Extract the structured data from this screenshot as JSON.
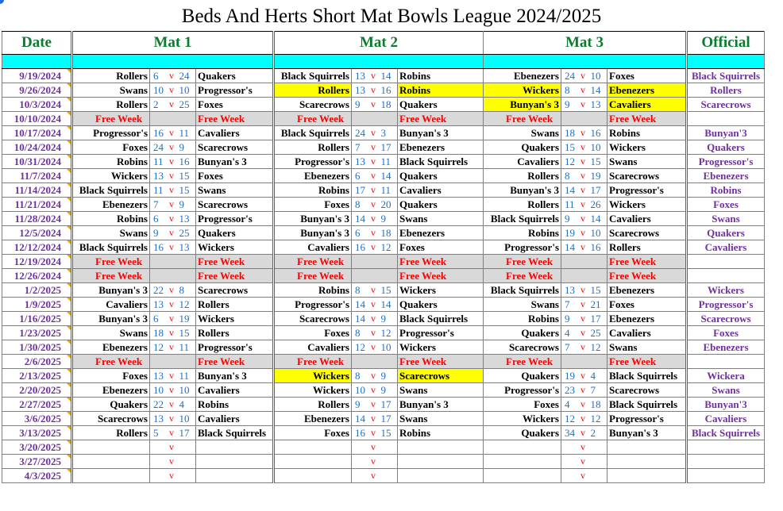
{
  "title": "Beds And Herts Short Mat Bowls League 2024/2025",
  "headers": {
    "date": "Date",
    "mat1": "Mat 1",
    "mat2": "Mat 2",
    "mat3": "Mat 3",
    "official": "Official"
  },
  "free_week_label": "Free Week",
  "vs_label": "v",
  "colors": {
    "accent_green": "#0e7a2f",
    "date_purple": "#7030a0",
    "score_blue": "#2070c0",
    "vs_red": "#ff0000",
    "header_cyan": "#00ffff",
    "highlight_yellow": "#ffff00",
    "free_grey": "#d9d9d9"
  },
  "rows": [
    {
      "date": "9/19/2024",
      "official": "Black Squirrels",
      "mats": [
        {
          "home": "Rollers",
          "hs": "6",
          "as": "24",
          "away": "Quakers"
        },
        {
          "home": "Black Squirrels",
          "hs": "13",
          "as": "14",
          "away": "Robins"
        },
        {
          "home": "Ebenezers",
          "hs": "24",
          "as": "10",
          "away": "Foxes"
        }
      ]
    },
    {
      "date": "9/26/2024",
      "official": "Rollers",
      "mats": [
        {
          "home": "Swans",
          "hs": "10",
          "as": "10",
          "away": "Progressor's"
        },
        {
          "home": "Rollers",
          "hs": "13",
          "as": "16",
          "away": "Robins",
          "hl": true
        },
        {
          "home": "Wickers",
          "hs": "8",
          "as": "14",
          "away": "Ebenezers",
          "hl": true
        }
      ]
    },
    {
      "date": "10/3/2024",
      "official": "Scarecrows",
      "mats": [
        {
          "home": "Rollers",
          "hs": "2",
          "as": "25",
          "away": "Foxes"
        },
        {
          "home": "Scarecrows",
          "hs": "9",
          "as": "18",
          "away": "Quakers"
        },
        {
          "home": "Bunyan's 3",
          "hs": "9",
          "as": "13",
          "away": "Cavaliers",
          "hl": true
        }
      ]
    },
    {
      "date": "10/10/2024",
      "official": "",
      "free": true
    },
    {
      "date": "10/17/2024",
      "official": "Bunyan'3",
      "mats": [
        {
          "home": "Progressor's",
          "hs": "16",
          "as": "11",
          "away": "Cavaliers"
        },
        {
          "home": "Black Squirrels",
          "hs": "24",
          "as": "3",
          "away": "Bunyan's 3"
        },
        {
          "home": "Swans",
          "hs": "18",
          "as": "16",
          "away": "Robins"
        }
      ]
    },
    {
      "date": "10/24/2024",
      "official": "Quakers",
      "mats": [
        {
          "home": "Foxes",
          "hs": "24",
          "as": "9",
          "away": "Scarecrows"
        },
        {
          "home": "Rollers",
          "hs": "7",
          "as": "17",
          "away": "Ebenezers"
        },
        {
          "home": "Quakers",
          "hs": "15",
          "as": "10",
          "away": "Wickers"
        }
      ]
    },
    {
      "date": "10/31/2024",
      "official": "Progressor's",
      "mats": [
        {
          "home": "Robins",
          "hs": "11",
          "as": "16",
          "away": "Bunyan's 3"
        },
        {
          "home": "Progressor's",
          "hs": "13",
          "as": "11",
          "away": "Black Squirrels"
        },
        {
          "home": "Cavaliers",
          "hs": "12",
          "as": "15",
          "away": "Swans"
        }
      ]
    },
    {
      "date": "11/7/2024",
      "official": "Ebenezers",
      "mats": [
        {
          "home": "Wickers",
          "hs": "13",
          "as": "15",
          "away": "Foxes"
        },
        {
          "home": "Ebenezers",
          "hs": "6",
          "as": "14",
          "away": "Quakers"
        },
        {
          "home": "Rollers",
          "hs": "8",
          "as": "19",
          "away": "Scarecrows"
        }
      ]
    },
    {
      "date": "11/14/2024",
      "official": "Robins",
      "mats": [
        {
          "home": "Black Squirrels",
          "hs": "11",
          "as": "15",
          "away": "Swans"
        },
        {
          "home": "Robins",
          "hs": "17",
          "as": "11",
          "away": "Cavaliers"
        },
        {
          "home": "Bunyan's 3",
          "hs": "14",
          "as": "17",
          "away": "Progressor's"
        }
      ]
    },
    {
      "date": "11/21/2024",
      "official": "Foxes",
      "mats": [
        {
          "home": "Ebenezers",
          "hs": "7",
          "as": "9",
          "away": "Scarecrows"
        },
        {
          "home": "Foxes",
          "hs": "8",
          "as": "20",
          "away": "Quakers"
        },
        {
          "home": "Rollers",
          "hs": "11",
          "as": "26",
          "away": "Wickers"
        }
      ]
    },
    {
      "date": "11/28/2024",
      "official": "Swans",
      "mats": [
        {
          "home": "Robins",
          "hs": "6",
          "as": "13",
          "away": "Progressor's"
        },
        {
          "home": "Bunyan's 3",
          "hs": "14",
          "as": "9",
          "away": "Swans"
        },
        {
          "home": "Black Squirrels",
          "hs": "9",
          "as": "14",
          "away": "Cavaliers"
        }
      ]
    },
    {
      "date": "12/5/2024",
      "official": "Quakers",
      "mats": [
        {
          "home": "Swans",
          "hs": "9",
          "as": "25",
          "away": "Quakers"
        },
        {
          "home": "Bunyan's 3",
          "hs": "6",
          "as": "18",
          "away": "Ebenezers"
        },
        {
          "home": "Robins",
          "hs": "19",
          "as": "10",
          "away": "Scarecrows"
        }
      ]
    },
    {
      "date": "12/12/2024",
      "official": "Cavaliers",
      "mats": [
        {
          "home": "Black Squirrels",
          "hs": "16",
          "as": "13",
          "away": "Wickers"
        },
        {
          "home": "Cavaliers",
          "hs": "16",
          "as": "12",
          "away": "Foxes"
        },
        {
          "home": "Progressor's",
          "hs": "14",
          "as": "16",
          "away": "Rollers"
        }
      ]
    },
    {
      "date": "12/19/2024",
      "official": "",
      "free": true
    },
    {
      "date": "12/26/2024",
      "official": "",
      "free": true
    },
    {
      "date": "1/2/2025",
      "official": "Wickers",
      "mats": [
        {
          "home": "Bunyan's 3",
          "hs": "22",
          "as": "8",
          "away": "Scarecrows"
        },
        {
          "home": "Robins",
          "hs": "8",
          "as": "15",
          "away": "Wickers"
        },
        {
          "home": "Black Squirrels",
          "hs": "13",
          "as": "15",
          "away": "Ebenezers"
        }
      ]
    },
    {
      "date": "1/9/2025",
      "official": "Progressor's",
      "mats": [
        {
          "home": "Cavaliers",
          "hs": "13",
          "as": "12",
          "away": "Rollers"
        },
        {
          "home": "Progressor's",
          "hs": "14",
          "as": "14",
          "away": "Quakers"
        },
        {
          "home": "Swans",
          "hs": "7",
          "as": "21",
          "away": "Foxes"
        }
      ]
    },
    {
      "date": "1/16/2025",
      "official": "Scarecrows",
      "mats": [
        {
          "home": "Bunyan's 3",
          "hs": "6",
          "as": "19",
          "away": "Wickers"
        },
        {
          "home": "Scarecrows",
          "hs": "14",
          "as": "9",
          "away": "Black Squirrels"
        },
        {
          "home": "Robins",
          "hs": "9",
          "as": "17",
          "away": "Ebenezers"
        }
      ]
    },
    {
      "date": "1/23/2025",
      "official": "Foxes",
      "mats": [
        {
          "home": "Swans",
          "hs": "18",
          "as": "15",
          "away": "Rollers"
        },
        {
          "home": "Foxes",
          "hs": "8",
          "as": "12",
          "away": "Progressor's"
        },
        {
          "home": "Quakers",
          "hs": "4",
          "as": "25",
          "away": "Cavaliers"
        }
      ]
    },
    {
      "date": "1/30/2025",
      "official": "Ebenezers",
      "mats": [
        {
          "home": "Ebenezers",
          "hs": "12",
          "as": "11",
          "away": "Progressor's"
        },
        {
          "home": "Cavaliers",
          "hs": "12",
          "as": "10",
          "away": "Wickers"
        },
        {
          "home": "Scarecrows",
          "hs": "7",
          "as": "12",
          "away": "Swans"
        }
      ]
    },
    {
      "date": "2/6/2025",
      "official": "",
      "free": true
    },
    {
      "date": "2/13/2025",
      "official": "Wickera",
      "mats": [
        {
          "home": "Foxes",
          "hs": "13",
          "as": "11",
          "away": "Bunyan's 3"
        },
        {
          "home": "Wickers",
          "hs": "8",
          "as": "9",
          "away": "Scarecrows",
          "hl": true
        },
        {
          "home": "Quakers",
          "hs": "19",
          "as": "4",
          "away": "Black Squirrels"
        }
      ]
    },
    {
      "date": "2/20/2025",
      "official": "Swans",
      "mats": [
        {
          "home": "Ebenezers",
          "hs": "10",
          "as": "10",
          "away": "Cavaliers"
        },
        {
          "home": "Wickers",
          "hs": "10",
          "as": "9",
          "away": "Swans"
        },
        {
          "home": "Progressor's",
          "hs": "23",
          "as": "7",
          "away": "Scarecrows"
        }
      ]
    },
    {
      "date": "2/27/2025",
      "official": "Bunyan'3",
      "mats": [
        {
          "home": "Quakers",
          "hs": "22",
          "as": "4",
          "away": "Robins"
        },
        {
          "home": "Rollers",
          "hs": "9",
          "as": "17",
          "away": "Bunyan's 3"
        },
        {
          "home": "Foxes",
          "hs": "4",
          "as": "18",
          "away": "Black Squirrels"
        }
      ]
    },
    {
      "date": "3/6/2025",
      "official": "Cavaliers",
      "mats": [
        {
          "home": "Scarecrows",
          "hs": "13",
          "as": "10",
          "away": "Cavaliers"
        },
        {
          "home": "Ebenezers",
          "hs": "14",
          "as": "17",
          "away": "Swans"
        },
        {
          "home": "Wickers",
          "hs": "12",
          "as": "12",
          "away": "Progressor's"
        }
      ]
    },
    {
      "date": "3/13/2025",
      "official": "Black Squirrels",
      "mats": [
        {
          "home": "Rollers",
          "hs": "5",
          "as": "17",
          "away": "Black Squirrels"
        },
        {
          "home": "Foxes",
          "hs": "16",
          "as": "15",
          "away": "Robins"
        },
        {
          "home": "Quakers",
          "hs": "34",
          "as": "2",
          "away": "Bunyan's 3"
        }
      ]
    },
    {
      "date": "3/20/2025",
      "official": "",
      "mats": [
        {
          "home": "",
          "hs": "",
          "as": "",
          "away": ""
        },
        {
          "home": "",
          "hs": "",
          "as": "",
          "away": ""
        },
        {
          "home": "",
          "hs": "",
          "as": "",
          "away": ""
        }
      ]
    },
    {
      "date": "3/27/2025",
      "official": "",
      "mats": [
        {
          "home": "",
          "hs": "",
          "as": "",
          "away": ""
        },
        {
          "home": "",
          "hs": "",
          "as": "",
          "away": ""
        },
        {
          "home": "",
          "hs": "",
          "as": "",
          "away": ""
        }
      ]
    },
    {
      "date": "4/3/2025",
      "official": "",
      "mats": [
        {
          "home": "",
          "hs": "",
          "as": "",
          "away": ""
        },
        {
          "home": "",
          "hs": "",
          "as": "",
          "away": ""
        },
        {
          "home": "",
          "hs": "",
          "as": "",
          "away": ""
        }
      ]
    }
  ]
}
